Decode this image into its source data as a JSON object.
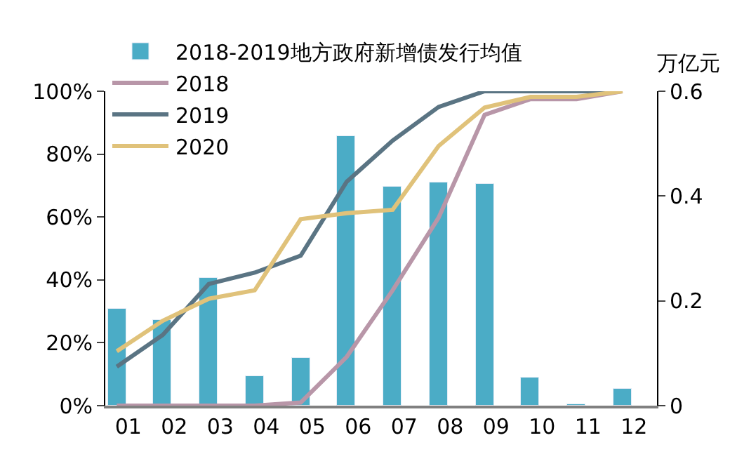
{
  "chart_data": {
    "type": "bar",
    "categories": [
      "01",
      "02",
      "03",
      "04",
      "05",
      "06",
      "07",
      "08",
      "09",
      "10",
      "11",
      "12"
    ],
    "series": [
      {
        "name": "2018-2019地方政府新增债发行均值",
        "axis": "y2",
        "color": "#4bacc6",
        "values": [
          0.185,
          0.163,
          0.244,
          0.056,
          0.091,
          0.514,
          0.418,
          0.426,
          0.423,
          0.054,
          0.002,
          0.032
        ]
      },
      {
        "name": "2018",
        "type": "line",
        "color": "#b896a8",
        "values": [
          0,
          0,
          0,
          0,
          1,
          15.5,
          36.7,
          59.8,
          92.5,
          97.5,
          97.5,
          100
        ]
      },
      {
        "name": "2019",
        "type": "line",
        "color": "#5a7483",
        "values": [
          12.4,
          22.5,
          38.7,
          42.3,
          47.7,
          71.2,
          84.3,
          95,
          100,
          100,
          100,
          100
        ]
      },
      {
        "name": "2020",
        "type": "line",
        "color": "#e0c27a",
        "values": [
          17.3,
          27,
          34,
          36.7,
          59.3,
          61.2,
          62.3,
          82.6,
          94.8,
          98.2,
          98.2,
          100
        ]
      }
    ],
    "ylim": [
      0,
      100
    ],
    "yticks": [
      {
        "value": 0,
        "label": "0%"
      },
      {
        "value": 20,
        "label": "20%"
      },
      {
        "value": 40,
        "label": "40%"
      },
      {
        "value": 60,
        "label": "60%"
      },
      {
        "value": 80,
        "label": "80%"
      },
      {
        "value": 100,
        "label": "100%"
      }
    ],
    "y2lim": [
      0,
      0.6
    ],
    "y2ticks": [
      0,
      0.2,
      0.4,
      0.6
    ],
    "y2label": "万亿元",
    "legend": "top left",
    "marker": "none",
    "line_style": "solid"
  }
}
